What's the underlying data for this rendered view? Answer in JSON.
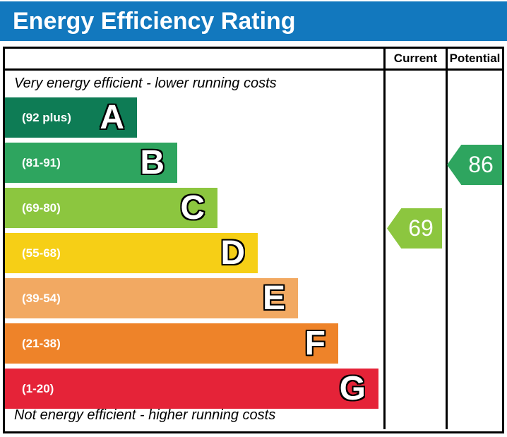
{
  "title": "Energy Efficiency Rating",
  "colors": {
    "title_bar_blue": "#1278be",
    "border_black": "#000000",
    "text_white": "#ffffff"
  },
  "table": {
    "current_header": "Current",
    "potential_header": "Potential"
  },
  "notes": {
    "top": "Very energy efficient - lower running costs",
    "bottom": "Not energy efficient - higher running costs"
  },
  "chart_data": {
    "type": "bar",
    "title": "Energy Efficiency Rating",
    "legend_position": "none",
    "grid": false,
    "bands": [
      {
        "letter": "A",
        "label": "(92 plus)",
        "min": 92,
        "max": 100,
        "color": "#0e7c55"
      },
      {
        "letter": "B",
        "label": "(81-91)",
        "min": 81,
        "max": 91,
        "color": "#2ea55f"
      },
      {
        "letter": "C",
        "label": "(69-80)",
        "min": 69,
        "max": 80,
        "color": "#8cc63f"
      },
      {
        "letter": "D",
        "label": "(55-68)",
        "min": 55,
        "max": 68,
        "color": "#f6cf16"
      },
      {
        "letter": "E",
        "label": "(39-54)",
        "min": 39,
        "max": 54,
        "color": "#f2a962"
      },
      {
        "letter": "F",
        "label": "(21-38)",
        "min": 21,
        "max": 38,
        "color": "#ee8329"
      },
      {
        "letter": "G",
        "label": "(1-20)",
        "min": 1,
        "max": 20,
        "color": "#e52338"
      }
    ],
    "current": {
      "value": 69,
      "band": "C",
      "color": "#8cc63f"
    },
    "potential": {
      "value": 86,
      "band": "B",
      "color": "#2ea55f"
    }
  }
}
